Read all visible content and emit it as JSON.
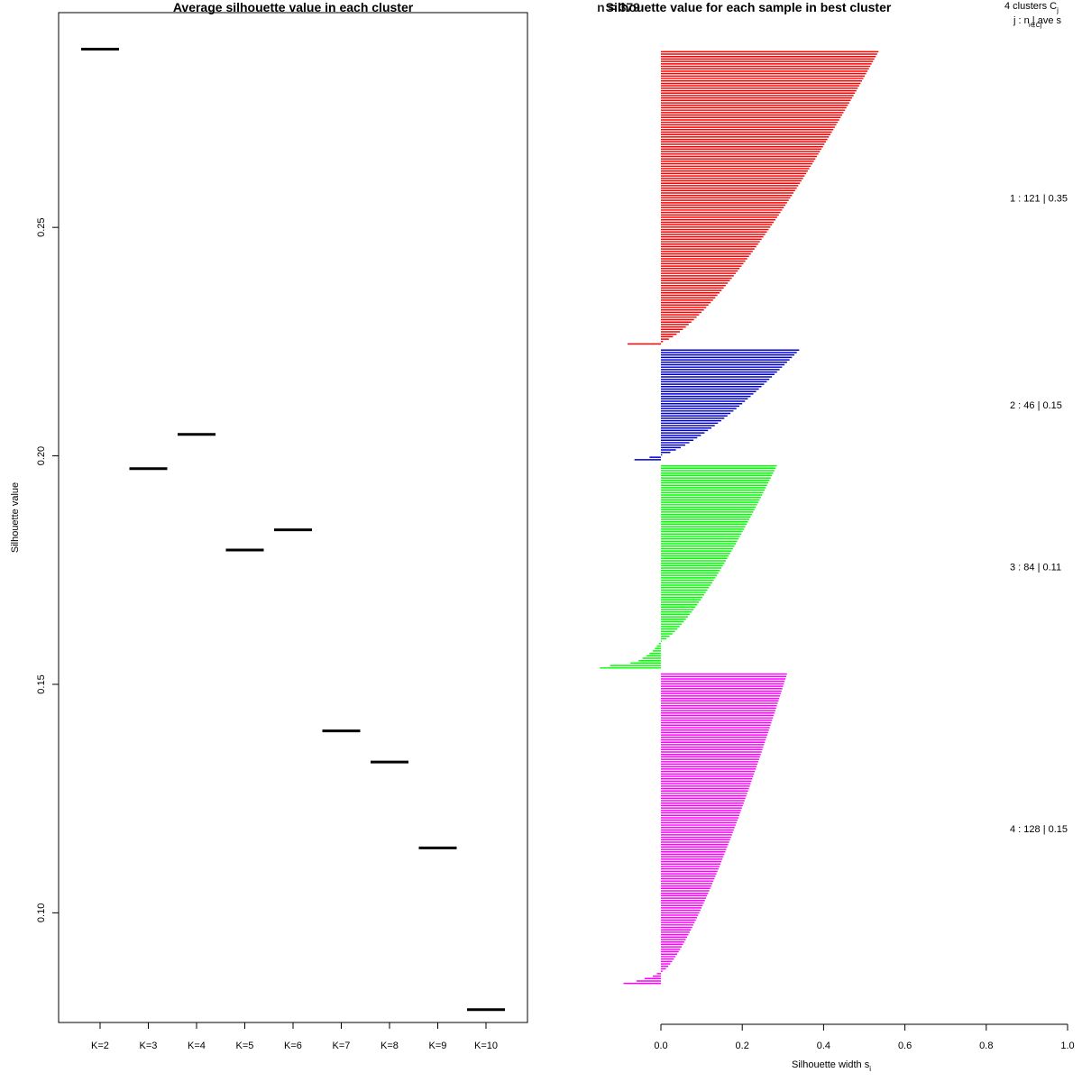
{
  "chart_data": [
    {
      "type": "line",
      "title": "Average silhouette value in each cluster",
      "xlabel": "",
      "ylabel": "Silhouette value",
      "ylim": [
        0.076,
        0.297
      ],
      "yticks": [
        0.1,
        0.15,
        0.2,
        0.25
      ],
      "ytick_labels": [
        "0.10",
        "0.15",
        "0.20",
        "0.25"
      ],
      "categories": [
        "K=2",
        "K=3",
        "K=4",
        "K=5",
        "K=6",
        "K=7",
        "K=8",
        "K=9",
        "K=10"
      ],
      "values": [
        0.289,
        0.1972,
        0.2047,
        0.1794,
        0.1838,
        0.1398,
        0.133,
        0.1142,
        0.0788
      ]
    },
    {
      "type": "bar",
      "title": "Silhouette value for each sample in best cluster",
      "overlay_text": "n = 379",
      "xlabel": "Silhouette width s",
      "xlabel_sub": "i",
      "xlim": [
        0.0,
        1.0
      ],
      "xticks": [
        "0.0",
        "0.2",
        "0.4",
        "0.6",
        "0.8",
        "1.0"
      ],
      "legend_header": "4  clusters  C",
      "legend_header_sub": "j",
      "legend_subheader": "j :  n  | ave      s",
      "legend_subheader_sub": "i∈Cj",
      "clusters": [
        {
          "id": 1,
          "n": 121,
          "ave": "0.35",
          "color": "#ff0000",
          "label": "1 :  121  |  0.35",
          "max": 0.535,
          "min": 0.005,
          "neg": [
            -0.082
          ]
        },
        {
          "id": 2,
          "n": 46,
          "ave": "0.15",
          "color": "#0000cd",
          "label": "2 :  46  |  0.15",
          "max": 0.34,
          "min": 0.003,
          "neg": [
            -0.028,
            -0.065
          ]
        },
        {
          "id": 3,
          "n": 84,
          "ave": "0.11",
          "color": "#00ff00",
          "label": "3 :  84  |  0.11",
          "max": 0.285,
          "min": 0.002,
          "neg": [
            -0.005,
            -0.01,
            -0.015,
            -0.02,
            -0.028,
            -0.035,
            -0.045,
            -0.055,
            -0.075,
            -0.125,
            -0.15
          ]
        },
        {
          "id": 4,
          "n": 128,
          "ave": "0.15",
          "color": "#ff00ff",
          "label": "4 :  128  |  0.15",
          "max": 0.31,
          "min": 0.004,
          "neg": [
            -0.01,
            -0.02,
            -0.04,
            -0.06,
            -0.092
          ]
        }
      ]
    }
  ]
}
